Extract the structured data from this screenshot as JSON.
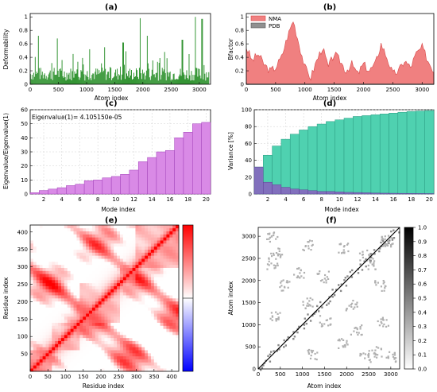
{
  "panels": {
    "a": {
      "title": "(a)",
      "xlabel": "Atom index",
      "ylabel": "Deformability"
    },
    "b": {
      "title": "(b)",
      "xlabel": "Atom index",
      "ylabel": "Bfactor"
    },
    "c": {
      "title": "(c)",
      "xlabel": "Mode index",
      "ylabel": "Eigenvalue/Eigenvalue(1)",
      "annotation": "Eigenvalue(1)= 4.105150e-05"
    },
    "d": {
      "title": "(d)",
      "xlabel": "Mode index",
      "ylabel": "Variance [%]"
    },
    "e": {
      "title": "(e)",
      "xlabel": "Residue index",
      "ylabel": "Residue index"
    },
    "f": {
      "title": "(f)",
      "xlabel": "Atom index",
      "ylabel": "Atom index"
    }
  },
  "colors": {
    "deformability": "#1f8a1f",
    "nma": "#f08080",
    "nma_edge": "#d84848",
    "pdb": "#909090",
    "eigen": "#d98ae6",
    "eigen_edge": "#a040b8",
    "cumulative": "#4fd1b0",
    "individual": "#8a5fc0",
    "corr_pos": "#e01b1b",
    "corr_neg": "#1e2ee6",
    "contact": "#b0b0b0"
  },
  "chart_data": [
    {
      "id": "a",
      "type": "bar",
      "title": "(a)",
      "xlabel": "Atom index",
      "ylabel": "Deformability",
      "xlim": [
        0,
        3200
      ],
      "ylim": [
        0,
        1.05
      ],
      "xticks": [
        0,
        500,
        1000,
        1500,
        2000,
        2500,
        3000
      ],
      "yticks": [
        0,
        0.2,
        0.4,
        0.6,
        0.8,
        1
      ],
      "baseline_level": 0.18,
      "peaks": [
        {
          "x": 150,
          "y": 0.72
        },
        {
          "x": 480,
          "y": 0.68
        },
        {
          "x": 760,
          "y": 0.45
        },
        {
          "x": 1050,
          "y": 0.52
        },
        {
          "x": 1320,
          "y": 0.55
        },
        {
          "x": 1650,
          "y": 0.62
        },
        {
          "x": 1950,
          "y": 0.98
        },
        {
          "x": 2080,
          "y": 0.72
        },
        {
          "x": 2380,
          "y": 0.48
        },
        {
          "x": 2700,
          "y": 0.66
        },
        {
          "x": 2930,
          "y": 1.0
        },
        {
          "x": 3050,
          "y": 0.97
        }
      ]
    },
    {
      "id": "b",
      "type": "area",
      "title": "(b)",
      "xlabel": "Atom index",
      "ylabel": "Bfactor",
      "xlim": [
        0,
        3200
      ],
      "ylim": [
        0,
        1.05
      ],
      "xticks": [
        0,
        500,
        1000,
        1500,
        2000,
        2500,
        3000
      ],
      "yticks": [
        0,
        0.2,
        0.4,
        0.6,
        0.8,
        1
      ],
      "legend_position": "top-left",
      "series": [
        {
          "name": "NMA",
          "x": [
            0,
            100,
            200,
            300,
            400,
            500,
            600,
            700,
            800,
            900,
            1000,
            1100,
            1200,
            1300,
            1400,
            1500,
            1600,
            1700,
            1800,
            1900,
            2000,
            2100,
            2200,
            2300,
            2400,
            2500,
            2600,
            2700,
            2800,
            2900,
            3000,
            3100,
            3200
          ],
          "values": [
            0.55,
            0.35,
            0.45,
            0.3,
            0.2,
            0.25,
            0.4,
            0.7,
            0.95,
            0.6,
            0.25,
            0.1,
            0.35,
            0.55,
            0.25,
            0.45,
            0.35,
            0.2,
            0.3,
            0.15,
            0.3,
            0.2,
            0.3,
            0.6,
            0.4,
            0.15,
            0.2,
            0.35,
            0.25,
            0.45,
            0.55,
            0.35,
            0.2
          ]
        },
        {
          "name": "PDB",
          "x": [
            0,
            3200
          ],
          "values": [
            0,
            0
          ]
        }
      ]
    },
    {
      "id": "c",
      "type": "bar",
      "title": "(c)",
      "xlabel": "Mode index",
      "ylabel": "Eigenvalue/Eigenvalue(1)",
      "annotation": "Eigenvalue(1)= 4.105150e-05",
      "categories": [
        1,
        2,
        3,
        4,
        5,
        6,
        7,
        8,
        9,
        10,
        11,
        12,
        13,
        14,
        15,
        16,
        17,
        18,
        19,
        20
      ],
      "values": [
        1,
        2.5,
        3.5,
        4.5,
        6,
        7,
        9.5,
        10,
        11.5,
        12.5,
        14,
        17,
        23,
        26,
        30,
        31,
        40,
        44,
        50,
        51
      ],
      "xticks": [
        2,
        4,
        6,
        8,
        10,
        12,
        14,
        16,
        18,
        20
      ],
      "yticks": [
        0,
        10,
        20,
        30,
        40,
        50,
        60
      ],
      "ylim": [
        0,
        60
      ]
    },
    {
      "id": "d",
      "type": "bar",
      "title": "(d)",
      "xlabel": "Mode index",
      "ylabel": "Variance [%]",
      "categories": [
        1,
        2,
        3,
        4,
        5,
        6,
        7,
        8,
        9,
        10,
        11,
        12,
        13,
        14,
        15,
        16,
        17,
        18,
        19,
        20
      ],
      "series": [
        {
          "values": [
            32,
            46,
            57,
            65,
            71,
            76,
            80,
            83,
            86,
            88,
            90,
            92,
            93,
            94,
            95,
            96,
            97,
            98,
            98.5,
            99
          ]
        },
        {
          "values": [
            32,
            14,
            11,
            8,
            6,
            5,
            4,
            3,
            3,
            2.5,
            2,
            1.8,
            1.5,
            1.2,
            1,
            0.9,
            0.8,
            0.7,
            0.6,
            0.5
          ]
        }
      ],
      "xticks": [
        2,
        4,
        6,
        8,
        10,
        12,
        14,
        16,
        18,
        20
      ],
      "yticks": [
        0,
        20,
        40,
        60,
        80,
        100
      ],
      "ylim": [
        0,
        100
      ]
    },
    {
      "id": "e",
      "type": "heatmap",
      "title": "(e)",
      "xlabel": "Residue index",
      "ylabel": "Residue index",
      "xlim": [
        0,
        420
      ],
      "ylim": [
        0,
        420
      ],
      "xticks": [
        0,
        50,
        100,
        150,
        200,
        250,
        300,
        350,
        400
      ],
      "yticks": [
        50,
        100,
        150,
        200,
        250,
        300,
        350,
        400
      ],
      "colorbar": {
        "min_color": "blue",
        "max_color": "red"
      }
    },
    {
      "id": "f",
      "type": "heatmap",
      "title": "(f)",
      "xlabel": "Atom index",
      "ylabel": "Atom index",
      "xlim": [
        0,
        3200
      ],
      "ylim": [
        0,
        3200
      ],
      "xticks": [
        0,
        500,
        1000,
        1500,
        2000,
        2500,
        3000
      ],
      "yticks": [
        0,
        500,
        1000,
        1500,
        2000,
        2500,
        3000
      ],
      "colorbar_ticks": [
        0,
        0.1,
        0.2,
        0.3,
        0.4,
        0.5,
        0.6,
        0.7,
        0.8,
        0.9,
        1.0
      ],
      "colorbar_tick_labels": [
        "0.0",
        "0.1",
        "0.2",
        "0.3",
        "0.4",
        "0.5",
        "0.6",
        "0.7",
        "0.8",
        "0.9",
        "1.0"
      ]
    }
  ]
}
